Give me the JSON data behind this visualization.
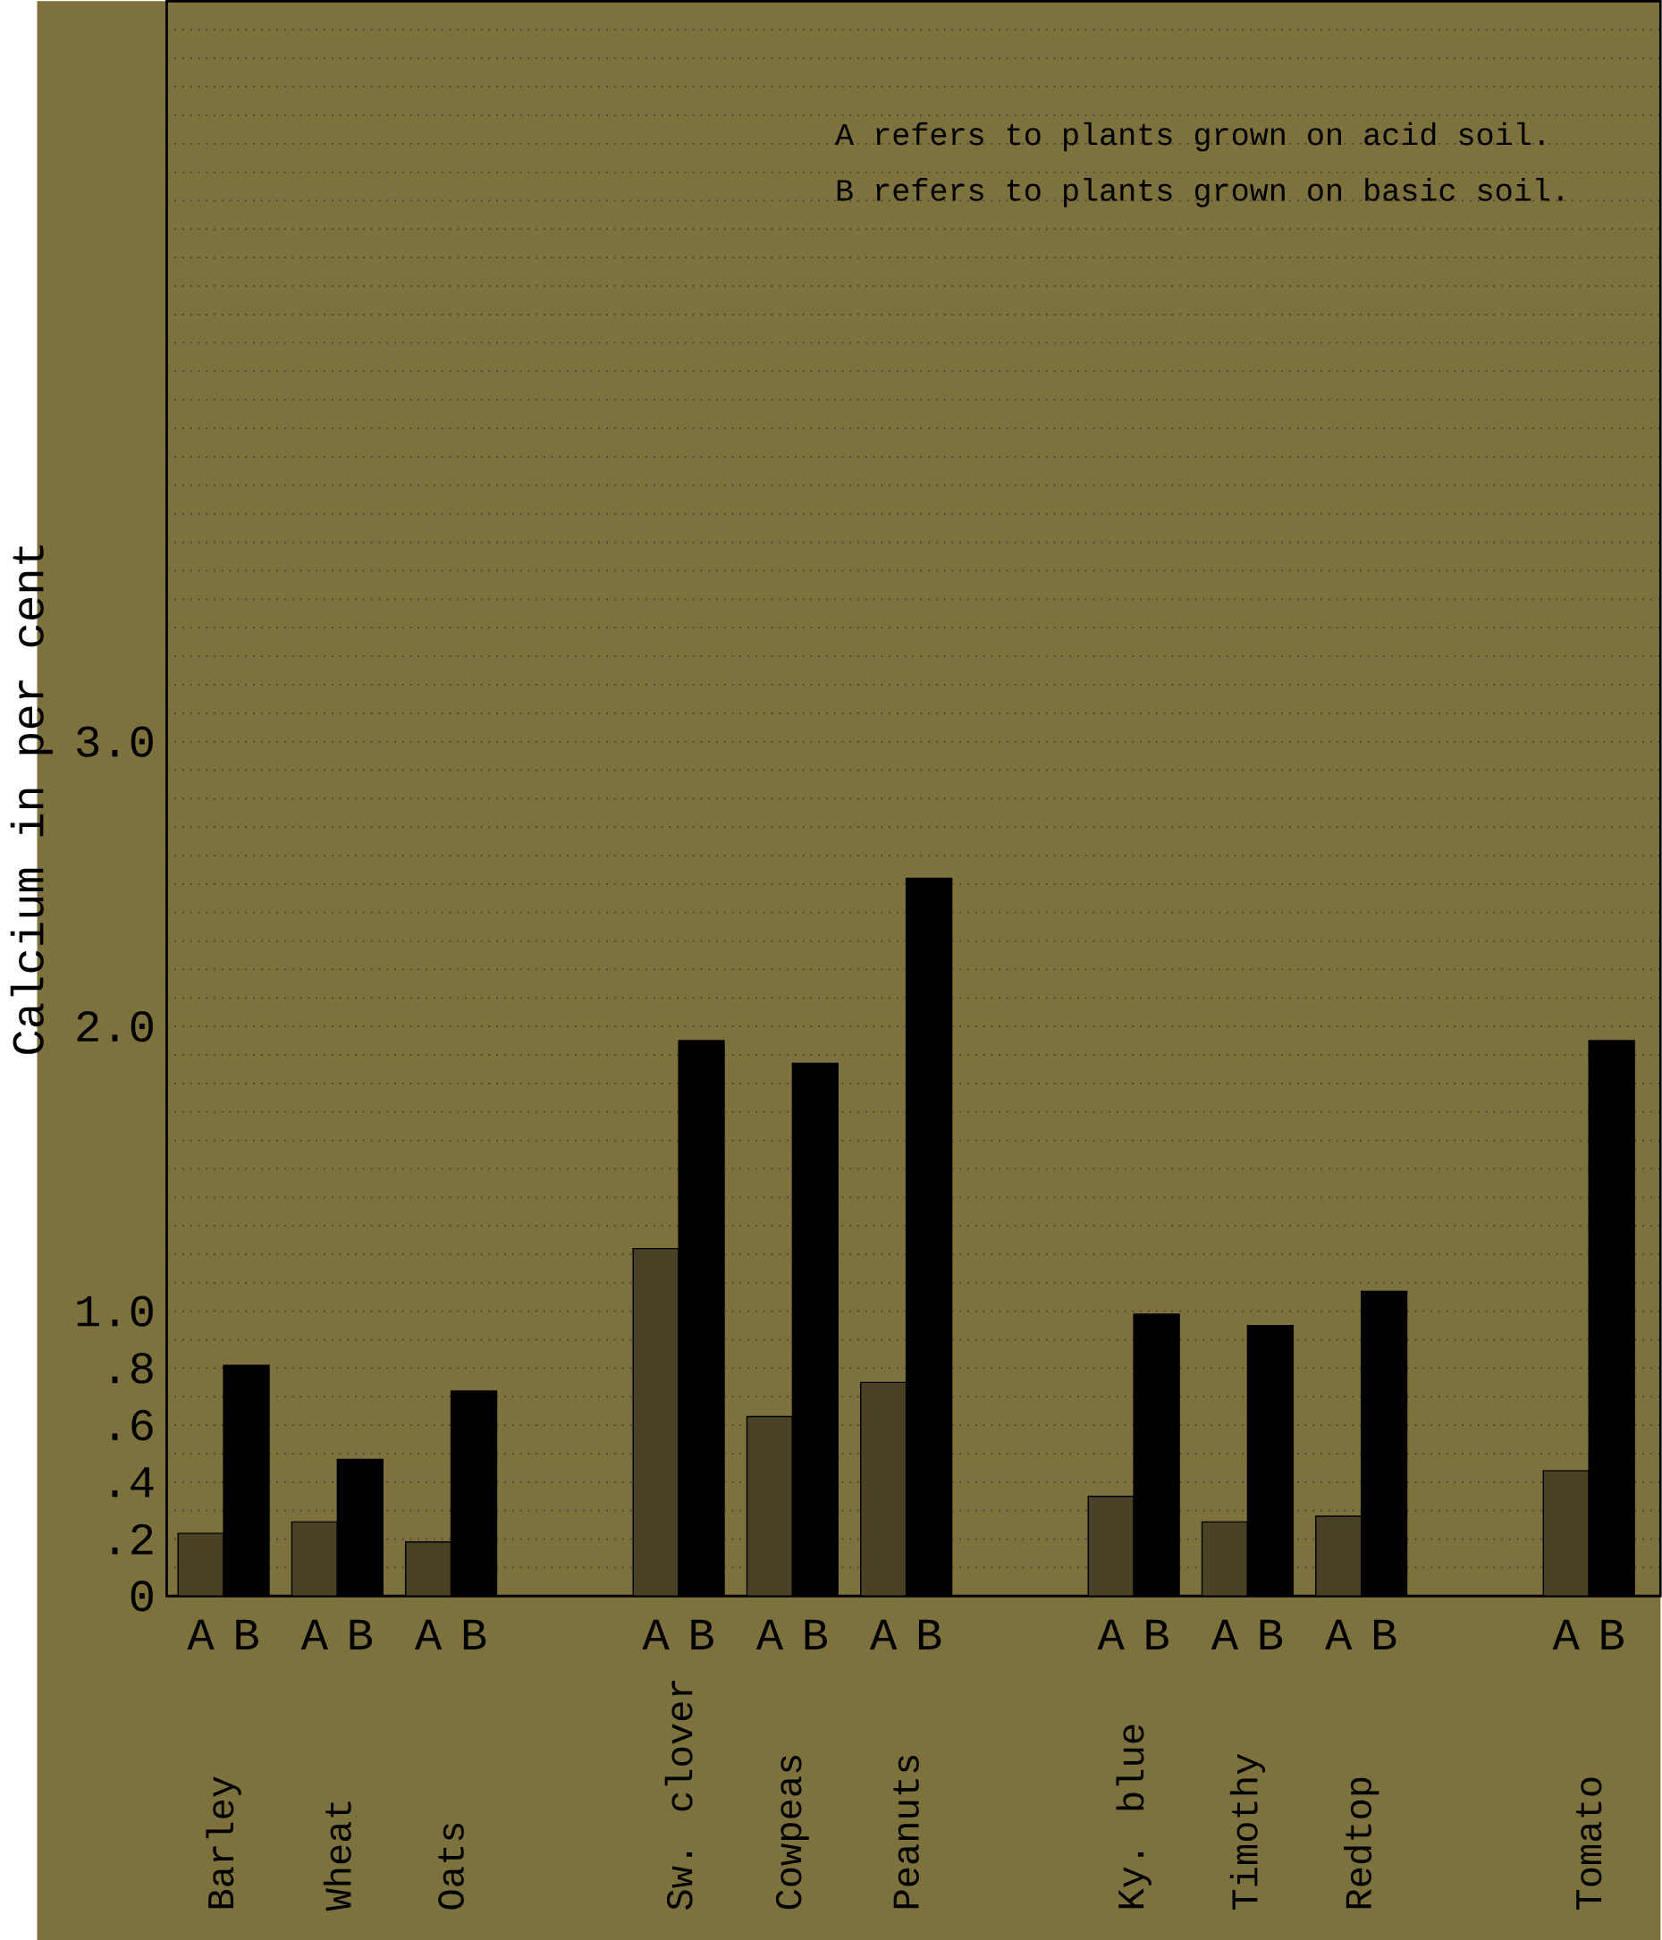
{
  "chart_data": {
    "type": "bar",
    "ylabel": "Calcium in per cent",
    "categories": [
      "Barley",
      "Wheat",
      "Oats",
      null,
      "Sw. clover",
      "Cowpeas",
      "Peanuts",
      null,
      "Ky. blue",
      "Timothy",
      "Redtop",
      null,
      "Tomato"
    ],
    "series": [
      {
        "name": "A",
        "color": "#4a4226",
        "values": [
          0.22,
          0.26,
          0.19,
          null,
          1.22,
          0.63,
          0.75,
          null,
          0.35,
          0.26,
          0.28,
          null,
          0.44
        ]
      },
      {
        "name": "B",
        "color": "#000000",
        "values": [
          0.81,
          0.48,
          0.72,
          null,
          1.95,
          1.87,
          2.52,
          null,
          0.99,
          0.95,
          1.07,
          null,
          1.95
        ]
      }
    ],
    "ylim": [
      0,
      5.6
    ],
    "yticks": [
      0,
      {
        "value": 0.2,
        "label": ".2"
      },
      {
        "value": 0.4,
        "label": ".4"
      },
      {
        "value": 0.6,
        "label": ".6"
      },
      {
        "value": 0.8,
        "label": ".8"
      },
      {
        "value": 1,
        "label": "1.0"
      },
      {
        "value": 2,
        "label": "2.0"
      },
      {
        "value": 3,
        "label": "3.0"
      }
    ],
    "grid": true,
    "legend": "bottom",
    "annotations": [
      "A refers to plants grown on acid soil.",
      "B refers to plants grown on basic soil."
    ]
  }
}
